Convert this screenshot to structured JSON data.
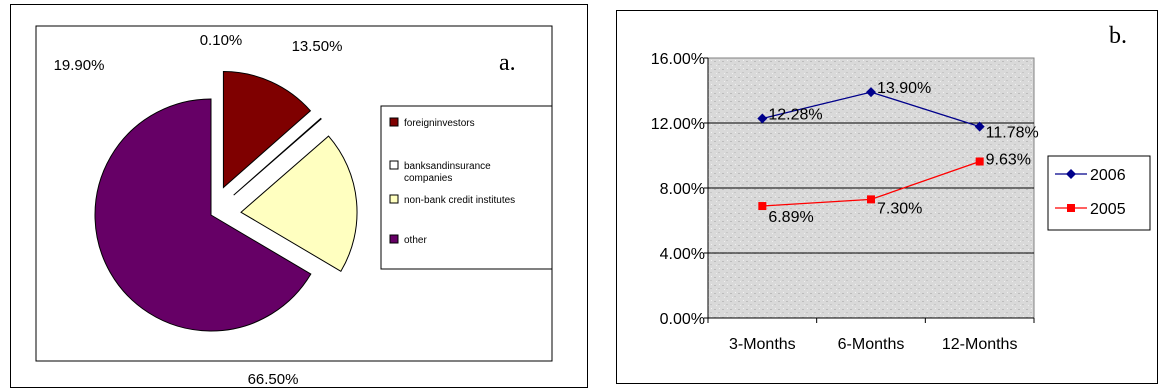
{
  "chart_data": [
    {
      "type": "pie",
      "panel_label": "a.",
      "categories": [
        "foreign investors",
        "banks and insurance companies",
        "non-bank credit institutes",
        "other"
      ],
      "legend_labels": [
        "foreigninvestors",
        "banksandinsurance companies",
        "non-bank credit institutes",
        "other"
      ],
      "values": [
        13.5,
        0.1,
        19.9,
        66.5
      ],
      "value_labels": [
        "13.50%",
        "0.10%",
        "19.90%",
        "66.50%"
      ],
      "colors": [
        "#7f0000",
        "#ffffff",
        "#ffffc0",
        "#660066"
      ],
      "legend_placement": "right"
    },
    {
      "type": "line",
      "panel_label": "b.",
      "categories": [
        "3-Months",
        "6-Months",
        "12-Months"
      ],
      "series": [
        {
          "name": "2006",
          "values": [
            12.28,
            13.9,
            11.78
          ],
          "labels": [
            "12.28%",
            "13.90%",
            "11.78%"
          ],
          "color": "#00008b",
          "marker": "diamond"
        },
        {
          "name": "2005",
          "values": [
            6.89,
            7.3,
            9.63
          ],
          "labels": [
            "6.89%",
            "7.30%",
            "9.63%"
          ],
          "color": "#ff0000",
          "marker": "square"
        }
      ],
      "ylim": [
        0,
        16
      ],
      "yticks": [
        "0.00%",
        "4.00%",
        "8.00%",
        "12.00%",
        "16.00%"
      ],
      "grid": true,
      "legend_placement": "right"
    }
  ]
}
